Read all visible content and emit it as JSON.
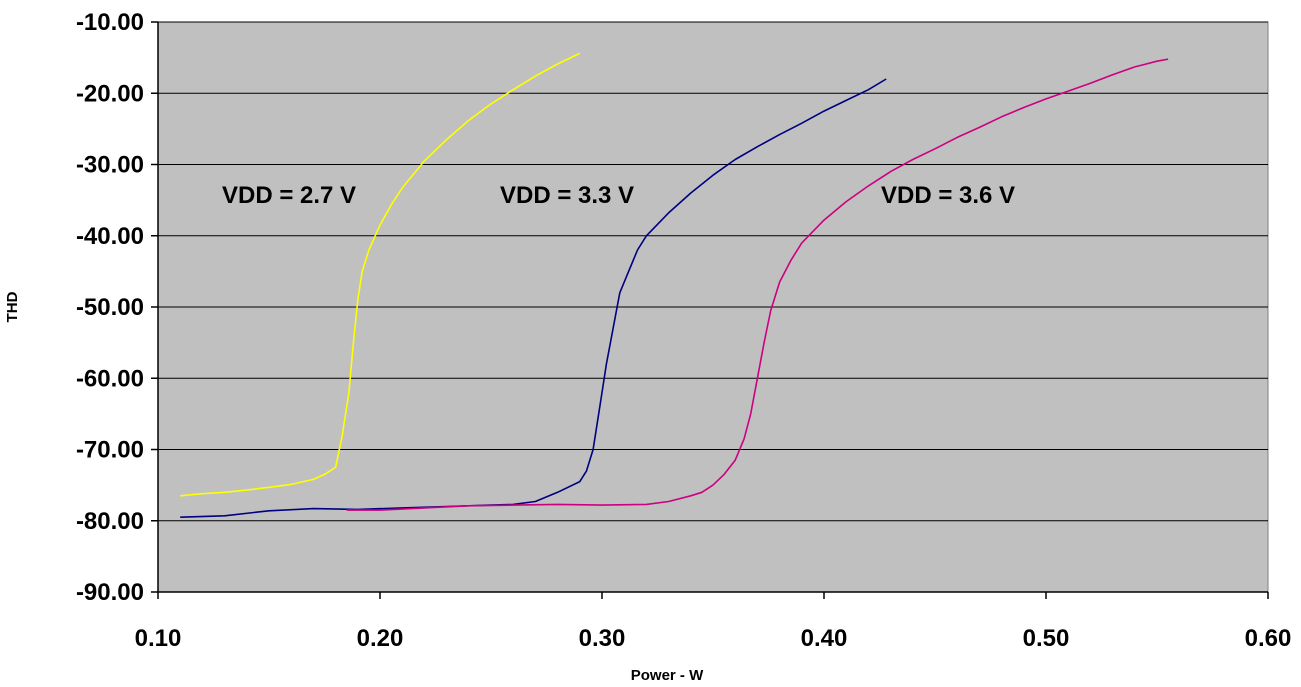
{
  "chart_data": {
    "type": "line",
    "title": "",
    "xlabel": "Power - W",
    "ylabel": "THD",
    "xlim": [
      0.1,
      0.6
    ],
    "ylim": [
      -90,
      -10
    ],
    "x_ticks": [
      "0.10",
      "0.20",
      "0.30",
      "0.40",
      "0.50",
      "0.60"
    ],
    "y_ticks": [
      "-10.00",
      "-20.00",
      "-30.00",
      "-40.00",
      "-50.00",
      "-60.00",
      "-70.00",
      "-80.00",
      "-90.00"
    ],
    "grid": "horizontal",
    "plot_background": "#c0c0c0",
    "annotations": [
      "VDD = 2.7 V",
      "VDD = 3.3 V",
      "VDD = 3.6 V"
    ],
    "series": [
      {
        "color": "#ffff00",
        "points": [
          [
            0.11,
            -76.5
          ],
          [
            0.12,
            -76.2
          ],
          [
            0.13,
            -76.0
          ],
          [
            0.14,
            -75.7
          ],
          [
            0.15,
            -75.3
          ],
          [
            0.16,
            -74.9
          ],
          [
            0.17,
            -74.2
          ],
          [
            0.175,
            -73.5
          ],
          [
            0.18,
            -72.5
          ],
          [
            0.183,
            -68
          ],
          [
            0.186,
            -62
          ],
          [
            0.188,
            -55
          ],
          [
            0.19,
            -49
          ],
          [
            0.192,
            -45
          ],
          [
            0.195,
            -42
          ],
          [
            0.2,
            -38.5
          ],
          [
            0.205,
            -35.7
          ],
          [
            0.21,
            -33.3
          ],
          [
            0.22,
            -29.5
          ],
          [
            0.23,
            -26.5
          ],
          [
            0.24,
            -23.8
          ],
          [
            0.25,
            -21.5
          ],
          [
            0.26,
            -19.5
          ],
          [
            0.27,
            -17.6
          ],
          [
            0.28,
            -15.9
          ],
          [
            0.29,
            -14.4
          ]
        ]
      },
      {
        "color": "#000080",
        "points": [
          [
            0.11,
            -79.5
          ],
          [
            0.13,
            -79.3
          ],
          [
            0.15,
            -78.6
          ],
          [
            0.17,
            -78.3
          ],
          [
            0.19,
            -78.4
          ],
          [
            0.21,
            -78.2
          ],
          [
            0.23,
            -78.0
          ],
          [
            0.25,
            -77.8
          ],
          [
            0.26,
            -77.7
          ],
          [
            0.27,
            -77.3
          ],
          [
            0.28,
            -76.0
          ],
          [
            0.29,
            -74.5
          ],
          [
            0.293,
            -73.0
          ],
          [
            0.296,
            -70.0
          ],
          [
            0.299,
            -64.0
          ],
          [
            0.302,
            -58.0
          ],
          [
            0.305,
            -53.0
          ],
          [
            0.308,
            -48.0
          ],
          [
            0.312,
            -45.0
          ],
          [
            0.316,
            -42.0
          ],
          [
            0.32,
            -40.0
          ],
          [
            0.33,
            -36.8
          ],
          [
            0.34,
            -34.0
          ],
          [
            0.35,
            -31.5
          ],
          [
            0.36,
            -29.3
          ],
          [
            0.37,
            -27.5
          ],
          [
            0.38,
            -25.8
          ],
          [
            0.39,
            -24.2
          ],
          [
            0.4,
            -22.5
          ],
          [
            0.41,
            -21.0
          ],
          [
            0.42,
            -19.5
          ],
          [
            0.428,
            -18.0
          ]
        ]
      },
      {
        "color": "#cc0080",
        "points": [
          [
            0.185,
            -78.5
          ],
          [
            0.2,
            -78.5
          ],
          [
            0.22,
            -78.2
          ],
          [
            0.24,
            -77.9
          ],
          [
            0.26,
            -77.8
          ],
          [
            0.28,
            -77.7
          ],
          [
            0.3,
            -77.8
          ],
          [
            0.32,
            -77.7
          ],
          [
            0.33,
            -77.3
          ],
          [
            0.34,
            -76.5
          ],
          [
            0.345,
            -76.0
          ],
          [
            0.35,
            -75.0
          ],
          [
            0.355,
            -73.5
          ],
          [
            0.36,
            -71.5
          ],
          [
            0.364,
            -68.5
          ],
          [
            0.367,
            -65.0
          ],
          [
            0.37,
            -60.0
          ],
          [
            0.373,
            -55.0
          ],
          [
            0.376,
            -50.5
          ],
          [
            0.38,
            -46.5
          ],
          [
            0.385,
            -43.5
          ],
          [
            0.39,
            -41.0
          ],
          [
            0.4,
            -37.8
          ],
          [
            0.41,
            -35.2
          ],
          [
            0.42,
            -33.0
          ],
          [
            0.43,
            -31.0
          ],
          [
            0.44,
            -29.3
          ],
          [
            0.45,
            -27.8
          ],
          [
            0.46,
            -26.2
          ],
          [
            0.47,
            -24.8
          ],
          [
            0.48,
            -23.3
          ],
          [
            0.49,
            -22.0
          ],
          [
            0.5,
            -20.8
          ],
          [
            0.51,
            -19.7
          ],
          [
            0.52,
            -18.6
          ],
          [
            0.53,
            -17.4
          ],
          [
            0.54,
            -16.3
          ],
          [
            0.55,
            -15.5
          ],
          [
            0.555,
            -15.2
          ]
        ]
      }
    ]
  }
}
